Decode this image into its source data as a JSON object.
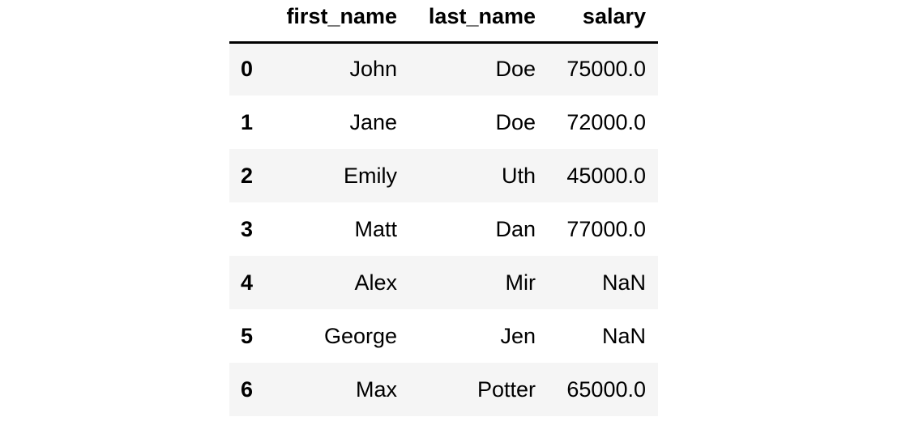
{
  "table": {
    "columns": {
      "index": "",
      "first_name": "first_name",
      "last_name": "last_name",
      "salary": "salary"
    },
    "rows": [
      {
        "index": "0",
        "first_name": "John",
        "last_name": "Doe",
        "salary": "75000.0"
      },
      {
        "index": "1",
        "first_name": "Jane",
        "last_name": "Doe",
        "salary": "72000.0"
      },
      {
        "index": "2",
        "first_name": "Emily",
        "last_name": "Uth",
        "salary": "45000.0"
      },
      {
        "index": "3",
        "first_name": "Matt",
        "last_name": "Dan",
        "salary": "77000.0"
      },
      {
        "index": "4",
        "first_name": "Alex",
        "last_name": "Mir",
        "salary": "NaN"
      },
      {
        "index": "5",
        "first_name": "George",
        "last_name": "Jen",
        "salary": "NaN"
      },
      {
        "index": "6",
        "first_name": "Max",
        "last_name": "Potter",
        "salary": "65000.0"
      }
    ]
  },
  "colors": {
    "striped_row_bg": "#f5f5f5",
    "header_rule": "#000000",
    "text": "#000000"
  }
}
